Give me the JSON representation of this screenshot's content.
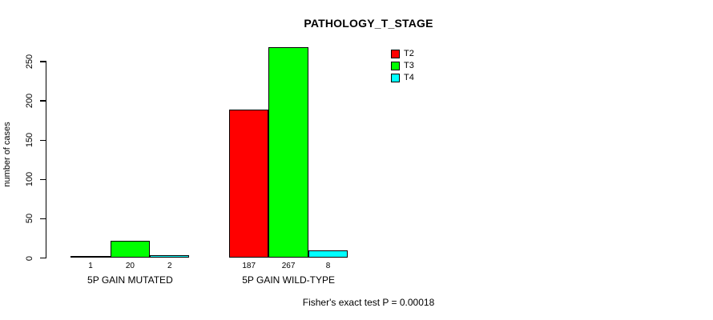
{
  "chart_data": {
    "type": "bar",
    "title": "PATHOLOGY_T_STAGE",
    "xlabel": "",
    "ylabel": "number of cases",
    "categories": [
      "5P GAIN MUTATED",
      "5P GAIN WILD-TYPE"
    ],
    "series": [
      {
        "name": "T2",
        "color": "#ff0000",
        "values": [
          1,
          187
        ]
      },
      {
        "name": "T3",
        "color": "#00ff00",
        "values": [
          20,
          267
        ]
      },
      {
        "name": "T4",
        "color": "#00ffff",
        "values": [
          2,
          8
        ]
      }
    ],
    "bar_value_labels": [
      [
        1,
        20,
        2
      ],
      [
        187,
        267,
        8
      ]
    ],
    "yticks": [
      0,
      50,
      100,
      150,
      200,
      250
    ],
    "ylim": [
      0,
      267
    ],
    "grid": false,
    "legend_position": "top-right",
    "annotation": "Fisher's exact test P = 0.00018"
  },
  "colors": {
    "axis": "#000000",
    "text": "#000000",
    "background": "#ffffff"
  }
}
